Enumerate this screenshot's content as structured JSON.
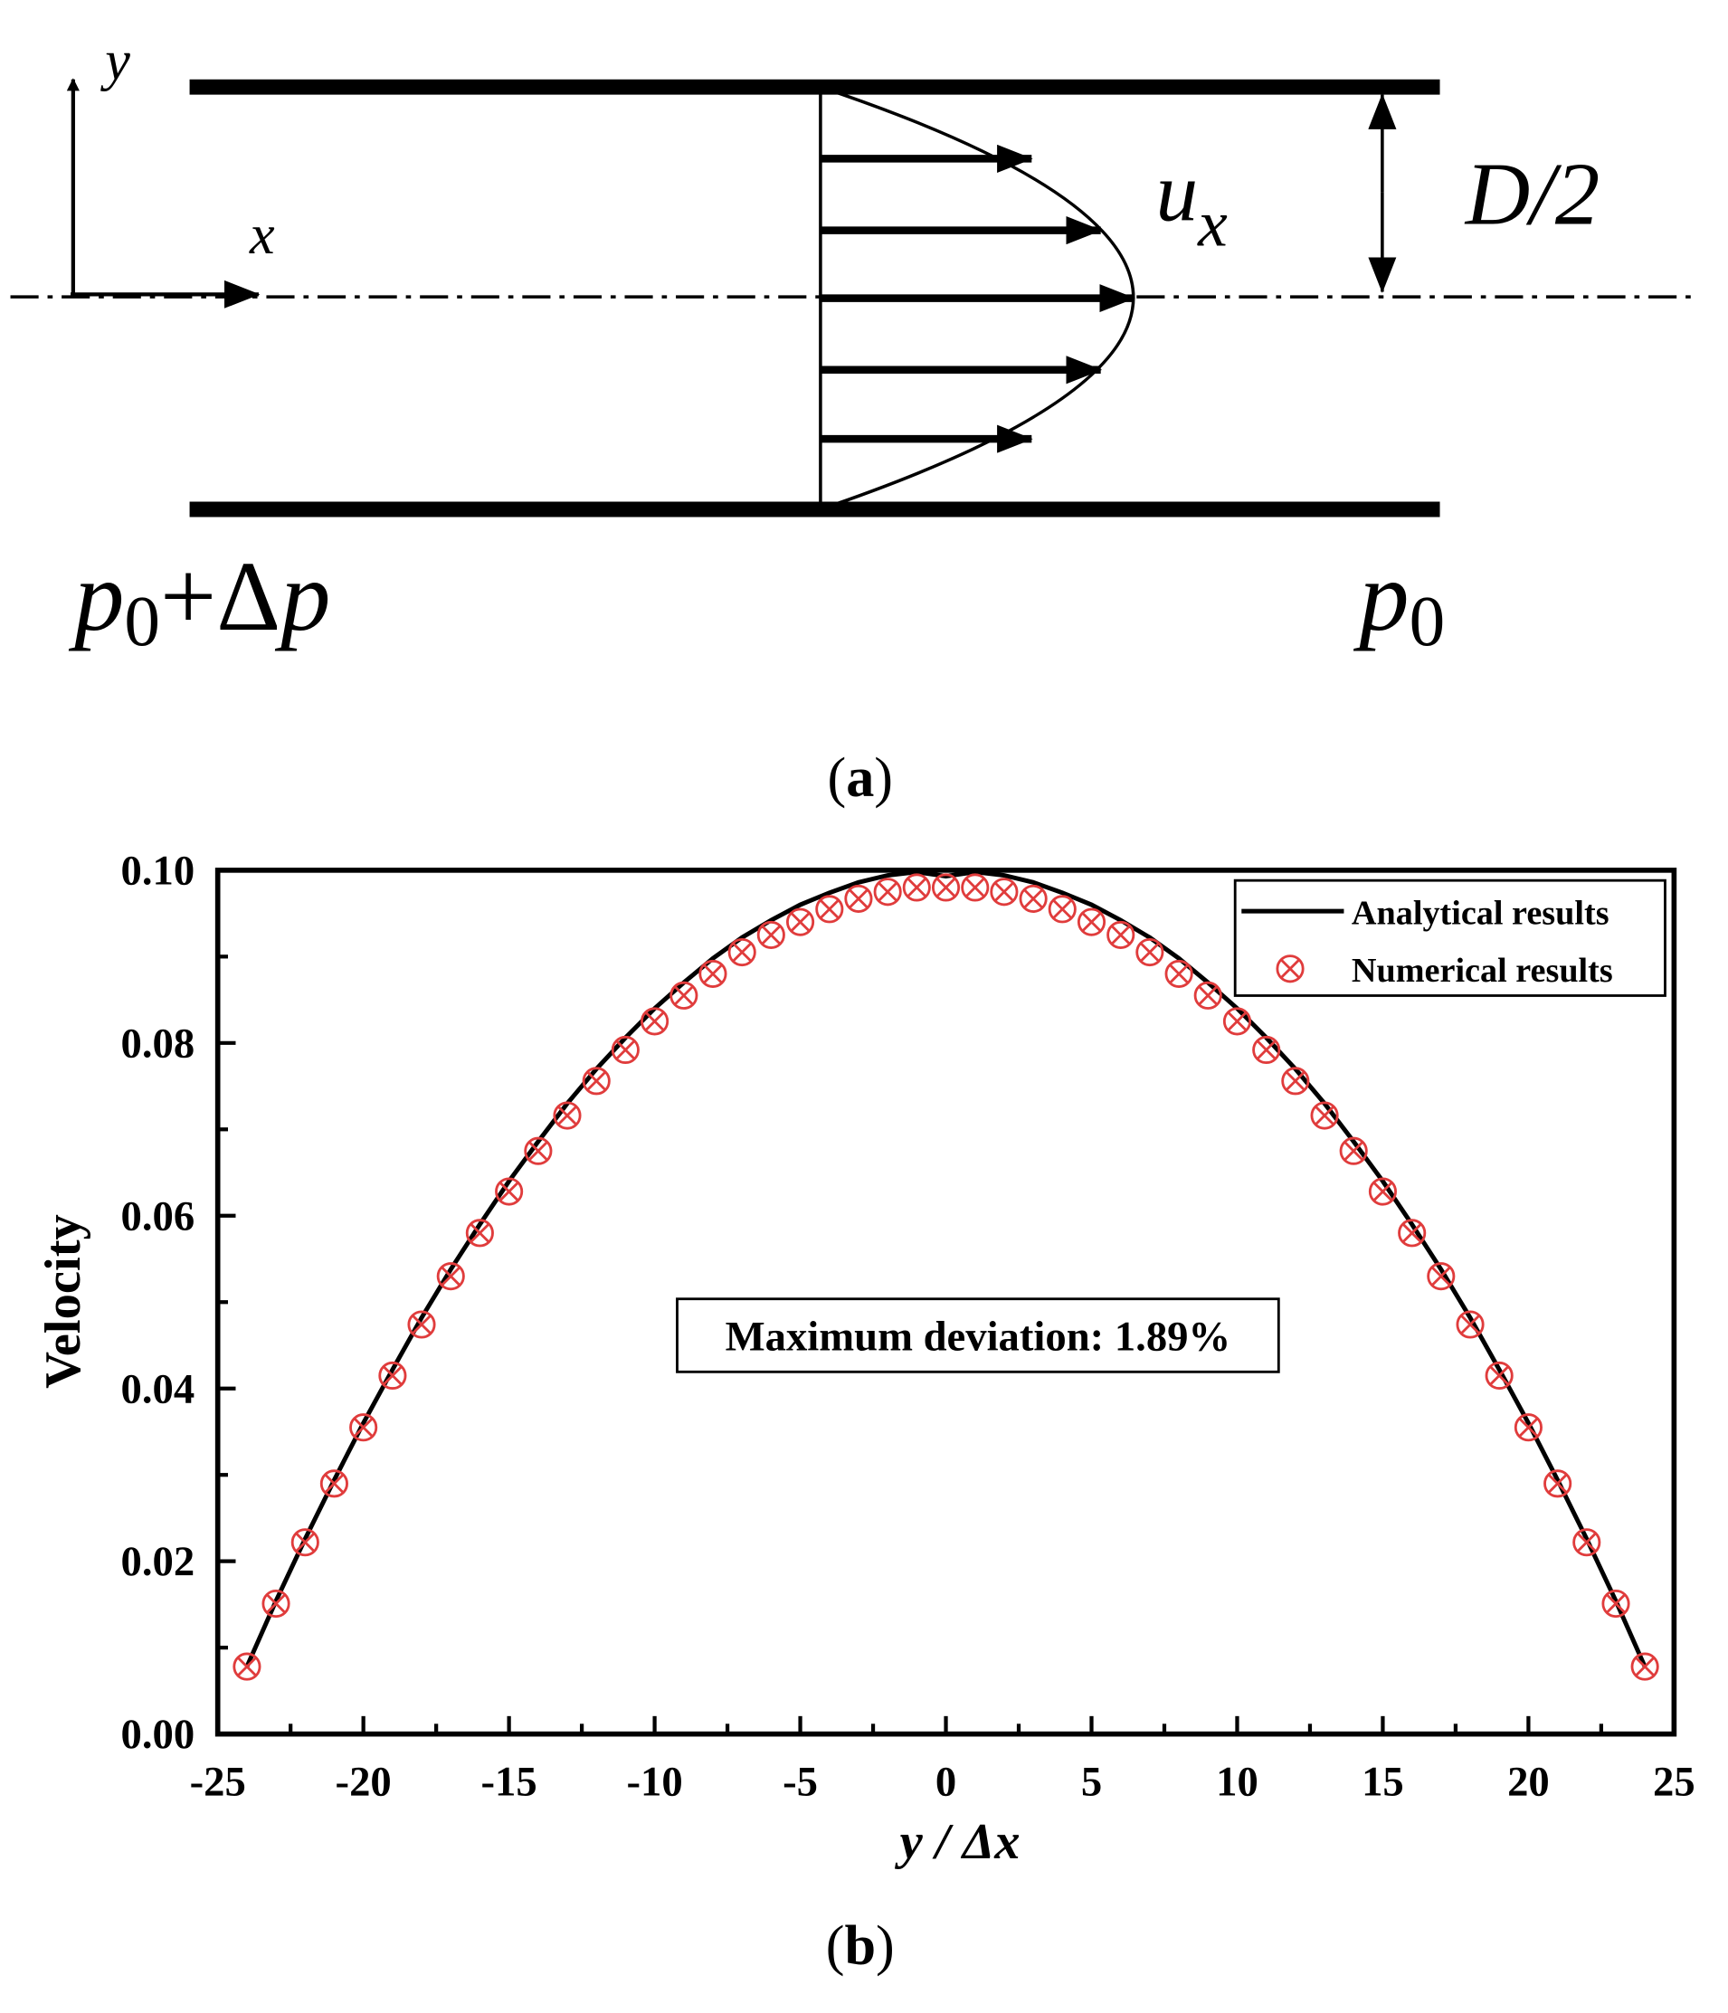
{
  "panel_a": {
    "axis_y_label": "y",
    "axis_x_label": "x",
    "velocity_label": "u",
    "velocity_subscript": "x",
    "half_width_label": "D/2",
    "inlet_pressure": {
      "p": "p",
      "sub": "0",
      "rest": "+Δ",
      "p2": "p"
    },
    "outlet_pressure": {
      "p": "p",
      "sub": "0"
    },
    "caption": {
      "open": "(",
      "letter": "a",
      "close": ")"
    }
  },
  "panel_b": {
    "caption": {
      "open": "(",
      "letter": "b",
      "close": ")"
    },
    "annotation": "Maximum deviation: 1.89%"
  },
  "chart_data": {
    "type": "line",
    "xlabel": "y / Δx",
    "ylabel": "Velocity",
    "xlim": [
      -25,
      25
    ],
    "ylim": [
      0,
      0.1
    ],
    "xticks": [
      "-25",
      "-20",
      "-15",
      "-10",
      "-5",
      "0",
      "5",
      "10",
      "15",
      "20",
      "25"
    ],
    "yticks": [
      "0.00",
      "0.02",
      "0.04",
      "0.06",
      "0.08",
      "0.10"
    ],
    "legend_position": "top-right",
    "grid": false,
    "colors": {
      "analytical": "#000000",
      "numerical": "#e03c3c"
    },
    "series": [
      {
        "name": "Analytical results",
        "style": "line",
        "x": [
          -24,
          -23,
          -22,
          -21,
          -20,
          -19,
          -18,
          -17,
          -16,
          -15,
          -14,
          -13,
          -12,
          -11,
          -10,
          -9,
          -8,
          -7,
          -6,
          -5,
          -4,
          -3,
          -2,
          -1,
          0,
          1,
          2,
          3,
          4,
          5,
          6,
          7,
          8,
          9,
          10,
          11,
          12,
          13,
          14,
          15,
          16,
          17,
          18,
          19,
          20,
          21,
          22,
          23,
          24
        ],
        "y": [
          0.0078,
          0.0154,
          0.0226,
          0.0294,
          0.036,
          0.0422,
          0.0482,
          0.0538,
          0.059,
          0.064,
          0.0686,
          0.073,
          0.077,
          0.0806,
          0.084,
          0.087,
          0.0898,
          0.0922,
          0.0942,
          0.096,
          0.0974,
          0.0986,
          0.0994,
          0.0998,
          0.0993,
          0.0998,
          0.0994,
          0.0986,
          0.0974,
          0.096,
          0.0942,
          0.0922,
          0.0898,
          0.087,
          0.084,
          0.0806,
          0.077,
          0.073,
          0.0686,
          0.064,
          0.059,
          0.0538,
          0.0482,
          0.0422,
          0.036,
          0.0294,
          0.0226,
          0.0154,
          0.0078
        ]
      },
      {
        "name": "Numerical results",
        "style": "marker-circle-x",
        "x": [
          -24,
          -23,
          -22,
          -21,
          -20,
          -19,
          -18,
          -17,
          -16,
          -15,
          -14,
          -13,
          -12,
          -11,
          -10,
          -9,
          -8,
          -7,
          -6,
          -5,
          -4,
          -3,
          -2,
          -1,
          0,
          1,
          2,
          3,
          4,
          5,
          6,
          7,
          8,
          9,
          10,
          11,
          12,
          13,
          14,
          15,
          16,
          17,
          18,
          19,
          20,
          21,
          22,
          23,
          24
        ],
        "y": [
          0.0078,
          0.0151,
          0.0222,
          0.029,
          0.0355,
          0.0415,
          0.0474,
          0.053,
          0.058,
          0.0628,
          0.0675,
          0.0716,
          0.0756,
          0.0792,
          0.0825,
          0.0855,
          0.088,
          0.0905,
          0.0925,
          0.094,
          0.0955,
          0.0967,
          0.0975,
          0.098,
          0.098,
          0.098,
          0.0975,
          0.0967,
          0.0955,
          0.094,
          0.0925,
          0.0905,
          0.088,
          0.0855,
          0.0825,
          0.0792,
          0.0756,
          0.0716,
          0.0675,
          0.0628,
          0.058,
          0.053,
          0.0474,
          0.0415,
          0.0355,
          0.029,
          0.0222,
          0.0151,
          0.0078
        ]
      }
    ]
  }
}
